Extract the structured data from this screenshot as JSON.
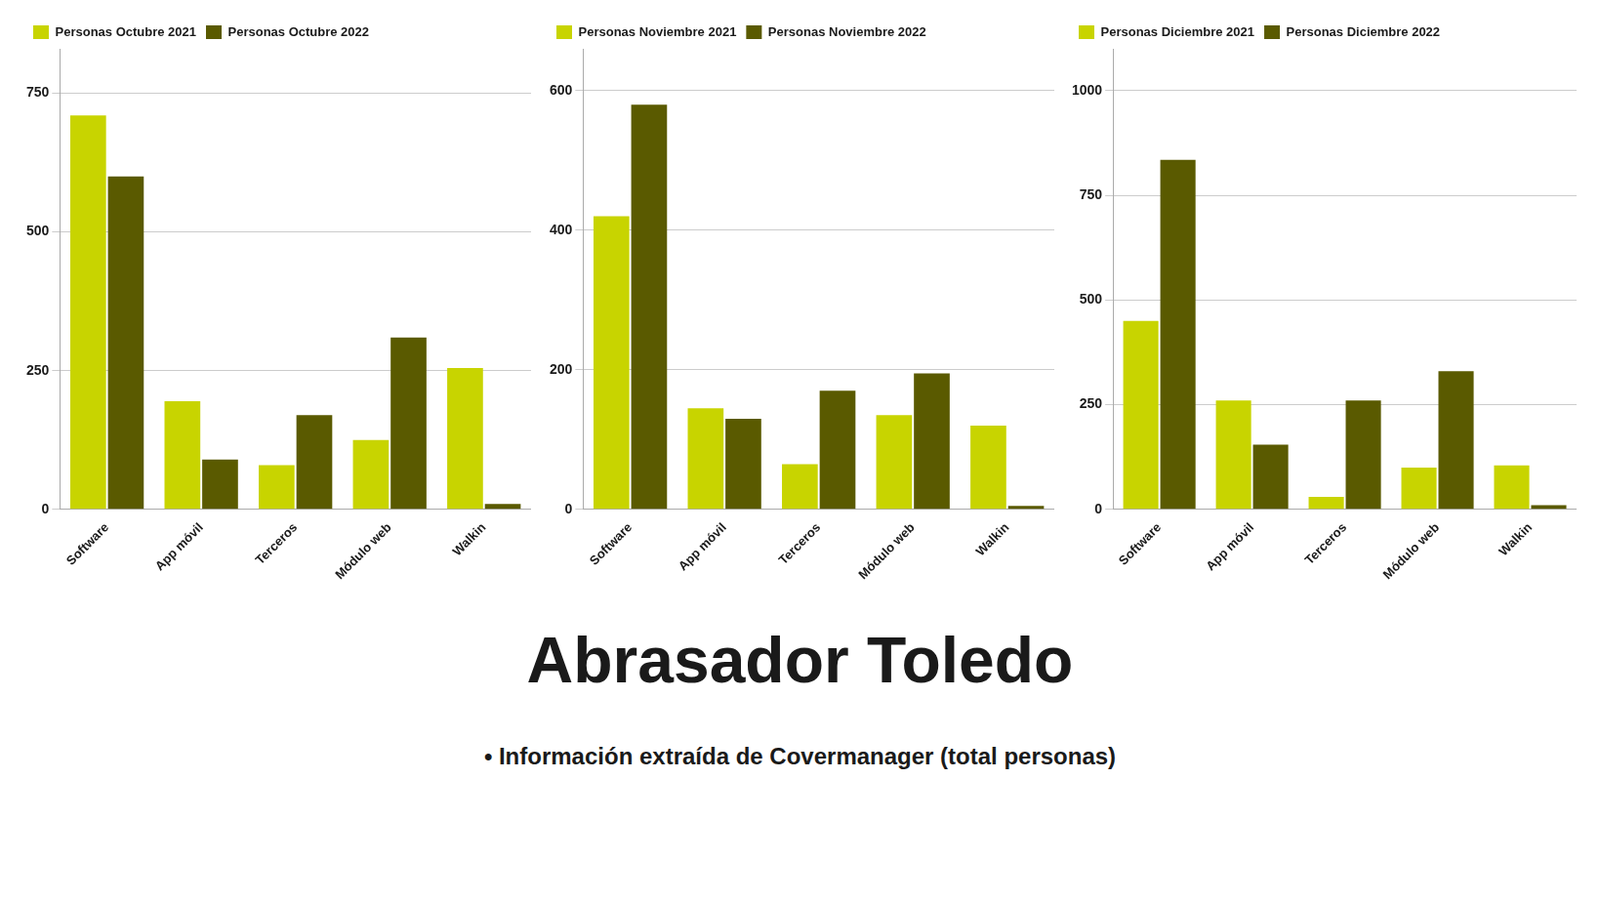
{
  "title": "Abrasador Toledo",
  "subtitle": "•  Información extraída de Covermanager (total personas)",
  "chart_data": [
    {
      "type": "bar",
      "categories": [
        "Software",
        "App móvil",
        "Terceros",
        "Módulo web",
        "Walkin"
      ],
      "series": [
        {
          "name": "Personas Octubre 2021",
          "color": "#c8d400",
          "values": [
            710,
            195,
            80,
            125,
            255
          ]
        },
        {
          "name": "Personas Octubre 2022",
          "color": "#5a5a00",
          "values": [
            600,
            90,
            170,
            310,
            10
          ]
        }
      ],
      "ylim": [
        0,
        830
      ],
      "yticks": [
        0,
        250,
        500,
        750
      ],
      "grid": true,
      "legend": "upper left"
    },
    {
      "type": "bar",
      "categories": [
        "Software",
        "App móvil",
        "Terceros",
        "Módulo web",
        "Walkin"
      ],
      "series": [
        {
          "name": "Personas Noviembre 2021",
          "color": "#c8d400",
          "values": [
            420,
            145,
            65,
            135,
            120
          ]
        },
        {
          "name": "Personas Noviembre 2022",
          "color": "#5a5a00",
          "values": [
            580,
            130,
            170,
            195,
            5
          ]
        }
      ],
      "ylim": [
        0,
        660
      ],
      "yticks": [
        0,
        200,
        400,
        600
      ],
      "grid": true,
      "legend": "upper left"
    },
    {
      "type": "bar",
      "categories": [
        "Software",
        "App móvil",
        "Terceros",
        "Módulo web",
        "Walkin"
      ],
      "series": [
        {
          "name": "Personas Diciembre 2021",
          "color": "#c8d400",
          "values": [
            450,
            260,
            30,
            100,
            105
          ]
        },
        {
          "name": "Personas Diciembre 2022",
          "color": "#5a5a00",
          "values": [
            835,
            155,
            260,
            330,
            10
          ]
        }
      ],
      "ylim": [
        0,
        1100
      ],
      "yticks": [
        0,
        250,
        500,
        750,
        1000
      ],
      "grid": true,
      "legend": "upper left"
    }
  ]
}
